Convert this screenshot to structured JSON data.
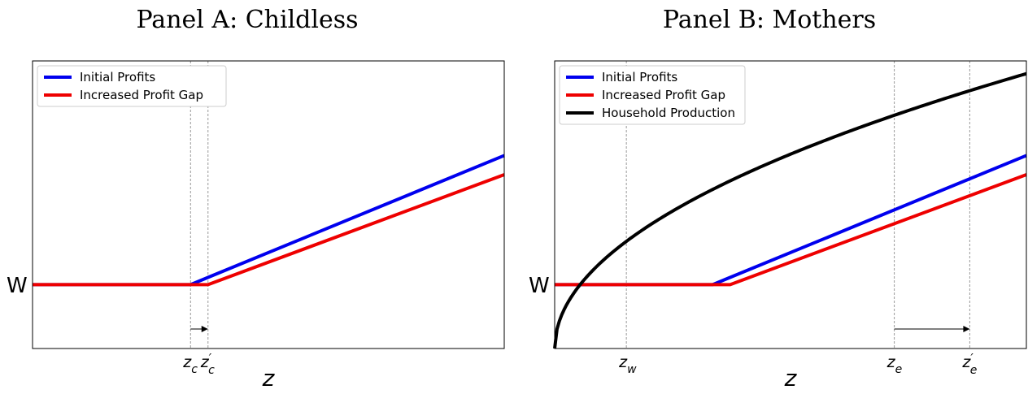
{
  "chart_data": [
    {
      "type": "line",
      "title": "Panel A: Childless",
      "xlabel": "z",
      "ylabel": "",
      "y_tick_label": "W",
      "xlim": [
        0,
        10
      ],
      "ylim": [
        -1,
        3.5
      ],
      "series": [
        {
          "name": "Initial Profits",
          "color": "#0000ee",
          "x": [
            0,
            3.35,
            10
          ],
          "y": [
            0,
            0,
            2.02
          ]
        },
        {
          "name": "Increased Profit Gap",
          "color": "#ee0000",
          "x": [
            0,
            3.72,
            10
          ],
          "y": [
            0,
            0,
            1.72
          ]
        }
      ],
      "x_ticks": [
        {
          "value": 3.35,
          "base": "z",
          "sub": "c",
          "prime": false
        },
        {
          "value": 3.72,
          "base": "z",
          "sub": "c",
          "prime": true
        }
      ],
      "arrow": {
        "from": 3.35,
        "to": 3.72
      },
      "legend_position": "upper left",
      "grid": false
    },
    {
      "type": "line",
      "title": "Panel B: Mothers",
      "xlabel": "z",
      "ylabel": "",
      "y_tick_label": "W",
      "xlim": [
        0,
        10
      ],
      "ylim": [
        -1,
        3.5
      ],
      "series": [
        {
          "name": "Initial Profits",
          "color": "#0000ee",
          "x": [
            0,
            3.35,
            10
          ],
          "y": [
            0,
            0,
            2.02
          ]
        },
        {
          "name": "Increased Profit Gap",
          "color": "#ee0000",
          "x": [
            0,
            3.72,
            10
          ],
          "y": [
            0,
            0,
            1.72
          ]
        },
        {
          "name": "Household Production",
          "color": "#000000",
          "function": "sqrt",
          "domain": [
            0,
            10
          ],
          "coef": 1.36,
          "shift": -1.0
        }
      ],
      "x_ticks": [
        {
          "value": 1.52,
          "base": "z",
          "sub": "w",
          "prime": false
        },
        {
          "value": 7.2,
          "base": "z",
          "sub": "e",
          "prime": false
        },
        {
          "value": 8.8,
          "base": "z",
          "sub": "e",
          "prime": true
        }
      ],
      "arrow": {
        "from": 7.2,
        "to": 8.8
      },
      "legend_position": "upper left",
      "grid": false
    }
  ]
}
